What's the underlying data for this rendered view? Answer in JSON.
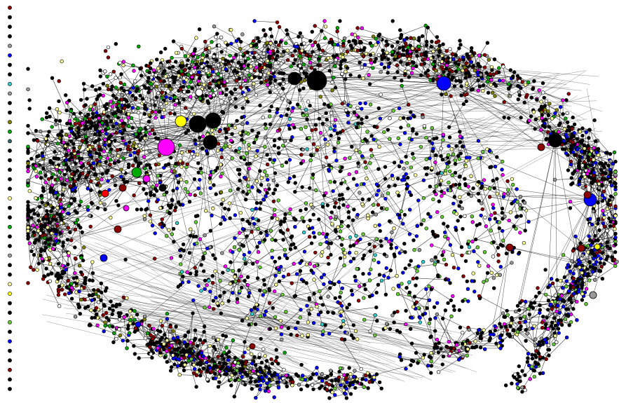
{
  "diagram": {
    "type": "network-graph",
    "layout_note": "",
    "background": "#ffffff",
    "edge_color": "#000000",
    "node_stroke": "#000000",
    "node_colors": {
      "black": "#000000",
      "dark_red": "#8b0000",
      "red": "#ff0000",
      "blue": "#0000ff",
      "magenta": "#ff00ff",
      "green": "#00aa00",
      "light_green": "#66cc33",
      "yellow": "#ffff00",
      "light_yellow": "#ffff99",
      "gray": "#999999",
      "cyan": "#33cccc",
      "olive": "#808000",
      "white": "#ffffff"
    },
    "legend_swatches": [
      "#8b0000",
      "#000000",
      "#000000",
      "#000000",
      "#999999",
      "#0000ff",
      "#000000",
      "#000000",
      "#33cccc",
      "#999999",
      "#000000",
      "#000000",
      "#808000",
      "#00aa00",
      "#336666",
      "#000000",
      "#000000",
      "#000000",
      "#000000",
      "#000000",
      "#ffff99",
      "#000000",
      "#000000",
      "#00aa00",
      "#000000",
      "#000000",
      "#999999",
      "#000000",
      "#000000",
      "#ffff99",
      "#ffff00",
      "#000000",
      "#000000",
      "#66cc33",
      "#000000",
      "#0000ff",
      "#000000",
      "#000000",
      "#8b0000",
      "#000000",
      "#000000"
    ],
    "hubs": [
      {
        "name": "magenta-hub",
        "color": "#ff00ff",
        "size": "large"
      },
      {
        "name": "yellow-hub",
        "color": "#ffff00",
        "size": "medium"
      },
      {
        "name": "green-hub",
        "color": "#00aa00",
        "size": "medium"
      },
      {
        "name": "blue-hub-top",
        "color": "#0000ff",
        "size": "medium"
      },
      {
        "name": "blue-hub-right",
        "color": "#0000ff",
        "size": "medium"
      },
      {
        "name": "black-hub-1",
        "color": "#000000",
        "size": "large"
      },
      {
        "name": "black-hub-2",
        "color": "#000000",
        "size": "large"
      },
      {
        "name": "black-hub-3",
        "color": "#000000",
        "size": "medium"
      },
      {
        "name": "dark-red-hub",
        "color": "#8b0000",
        "size": "small"
      }
    ]
  }
}
